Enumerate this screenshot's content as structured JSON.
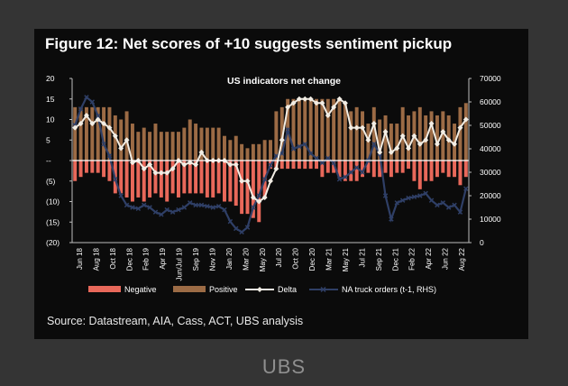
{
  "figure_title": "Figure 12: Net scores of +10 suggests sentiment pickup",
  "source": "Source: Datastream, AIA, Cass, ACT, UBS analysis",
  "brand": "UBS",
  "colors": {
    "negative": "#e8685a",
    "positive": "#9c6b45",
    "delta": "#f2ede4",
    "truck": "#2f3f66",
    "axis": "#ffffff",
    "background": "#0b0b0b"
  },
  "chart_data": {
    "type": "bar",
    "title": "US indicators net change",
    "legend_position": "bottom",
    "grid": false,
    "left_axis": {
      "ylim": [
        -20,
        20
      ],
      "ticks": [
        20,
        15,
        10,
        5,
        "--",
        "(5)",
        "(10)",
        "(15)",
        "(20)"
      ]
    },
    "right_axis": {
      "ylim": [
        0,
        70000
      ],
      "ticks": [
        "70000",
        "60000",
        "50000",
        "40000",
        "30000",
        "20000",
        "10000",
        "0"
      ]
    },
    "x_tick_labels": [
      "Jun 18",
      "Aug 18",
      "Oct 18",
      "Dec 18",
      "Feb 19",
      "Apr 19",
      "Jun/Jul 19",
      "Sep 19",
      "Nov 19",
      "Jan 20",
      "Mar 20",
      "May 20",
      "Jul 20",
      "Oct 20",
      "Dec 20",
      "Mar 21",
      "May 21",
      "Jul 21",
      "Sep 21",
      "Dec 21",
      "Feb 22",
      "Apr 22",
      "Jun 22",
      "Aug 22"
    ],
    "series": [
      {
        "name": "Negative",
        "type": "bar",
        "axis": "left",
        "values": [
          -5,
          -4,
          -3,
          -3,
          -3,
          -4,
          -5,
          -8,
          -8,
          -9,
          -10,
          -9,
          -10,
          -9,
          -8,
          -9,
          -10,
          -8,
          -9,
          -8,
          -8,
          -8,
          -8,
          -9,
          -9,
          -8,
          -10,
          -10,
          -11,
          -13,
          -13,
          -14,
          -15,
          -9,
          -2,
          -2,
          -2,
          -2,
          -2,
          -2,
          -2,
          -2,
          -2,
          -4,
          -3,
          -3,
          -4,
          -5,
          -5,
          -5,
          -4,
          -3,
          -4,
          -4,
          -3,
          -4,
          -3,
          -3,
          -2,
          -5,
          -7,
          -5,
          -5,
          -4,
          -3,
          -4,
          -4,
          -6,
          -4
        ]
      },
      {
        "name": "Positive",
        "type": "bar",
        "axis": "left",
        "values": [
          13,
          13,
          13,
          13,
          13,
          13,
          13,
          11,
          10,
          12,
          9,
          7,
          8,
          7,
          9,
          7,
          7,
          7,
          7,
          8,
          10,
          9,
          8,
          8,
          8,
          8,
          6,
          5,
          6,
          4,
          3,
          4,
          4,
          5,
          5,
          12,
          13,
          15,
          15,
          15,
          15,
          15,
          15,
          15,
          15,
          15,
          15,
          14,
          12,
          13,
          12,
          9,
          13,
          10,
          11,
          9,
          9,
          13,
          11,
          12,
          13,
          11,
          12,
          11,
          12,
          11,
          9,
          13,
          14
        ]
      },
      {
        "name": "Delta",
        "type": "line",
        "axis": "left",
        "values": [
          8,
          9,
          11,
          9,
          10,
          9,
          8,
          6,
          3,
          5,
          -0.5,
          0,
          -2,
          -1,
          -3,
          -3,
          -3,
          -2,
          0,
          -1,
          -0.5,
          -1,
          2,
          0,
          0,
          0,
          0,
          -1,
          -1,
          -5,
          -5,
          -9,
          -10,
          -9,
          -5,
          -2,
          5,
          13,
          14,
          15,
          15,
          15,
          14,
          14,
          11,
          13,
          15,
          14,
          8,
          8,
          8,
          5,
          9,
          2,
          7,
          2,
          3,
          6,
          3,
          6,
          4,
          5,
          9,
          4,
          7,
          5,
          4,
          8,
          10
        ]
      },
      {
        "name": "NA truck orders (t-1, RHS)",
        "type": "line",
        "axis": "right",
        "values": [
          50000,
          57000,
          62000,
          60000,
          54000,
          42000,
          37000,
          27000,
          20000,
          16000,
          15000,
          14500,
          16000,
          15000,
          13000,
          12000,
          14000,
          13000,
          14000,
          15000,
          17000,
          16000,
          16000,
          15500,
          15000,
          15500,
          14000,
          9000,
          6000,
          4500,
          6500,
          15000,
          20000,
          27000,
          33000,
          37000,
          38000,
          48000,
          40000,
          41000,
          42000,
          38000,
          36000,
          34000,
          36000,
          34000,
          27000,
          28000,
          30000,
          32000,
          30000,
          35000,
          42000,
          38000,
          20000,
          10000,
          17000,
          18000,
          19000,
          19500,
          20000,
          21000,
          18000,
          16000,
          17000,
          15000,
          16000,
          13000,
          23000
        ]
      }
    ]
  }
}
